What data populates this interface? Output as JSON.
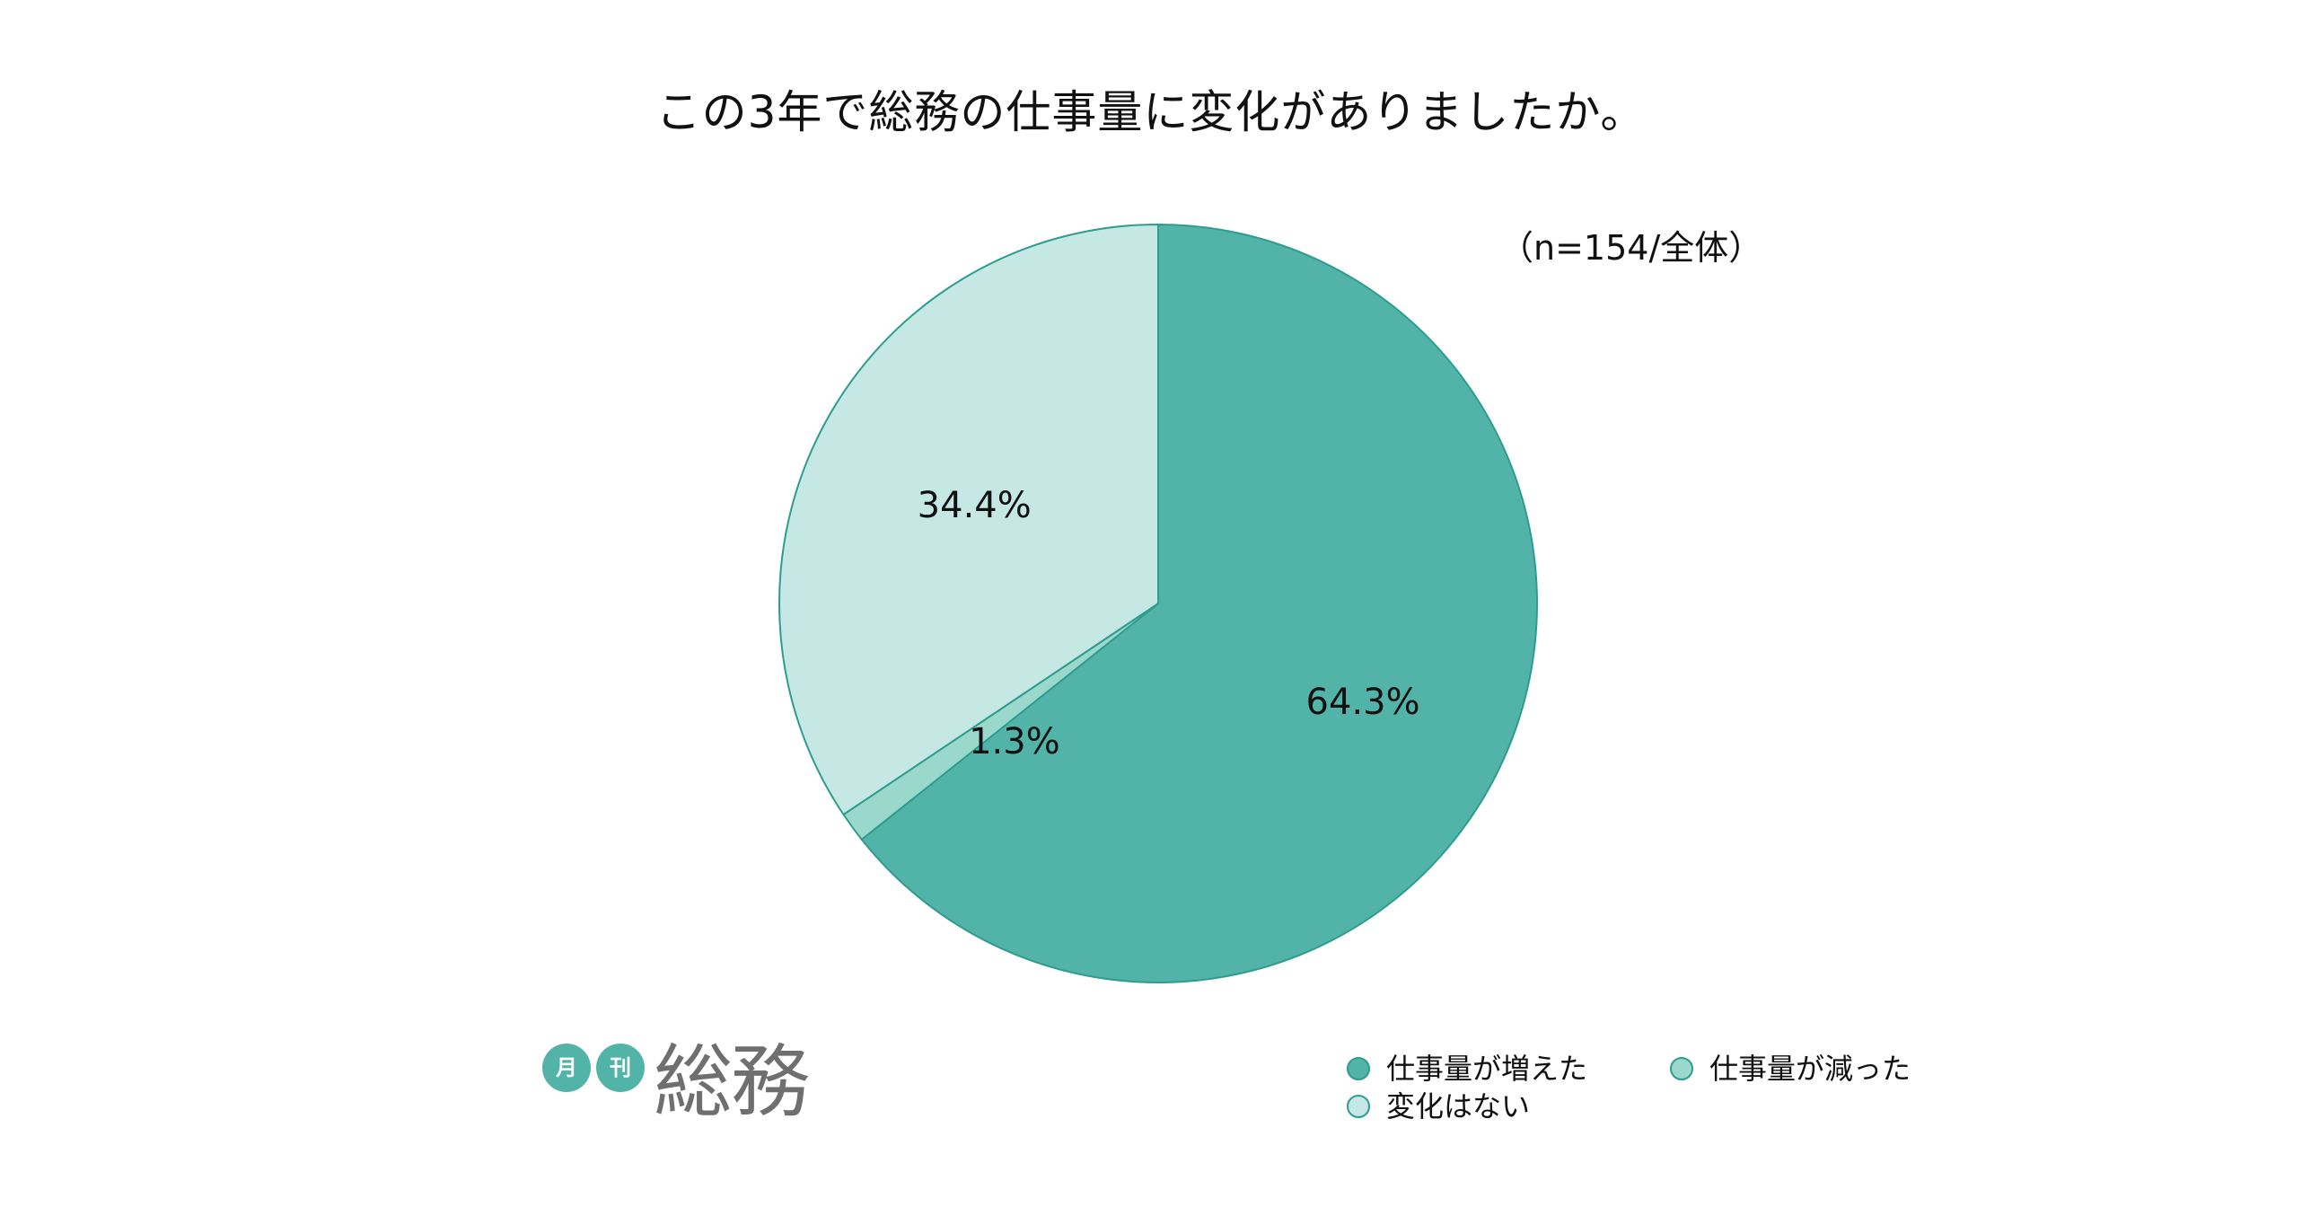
{
  "chart_data": {
    "type": "pie",
    "title": "この3年で総務の仕事量に変化がありましたか。",
    "note": "（n=154/全体）",
    "slices": [
      {
        "name": "仕事量が増えた",
        "value": 64.3,
        "label": "64.3%",
        "color": "#52b4a9"
      },
      {
        "name": "仕事量が減った",
        "value": 1.3,
        "label": "1.3%",
        "color": "#9ad8cc"
      },
      {
        "name": "変化はない",
        "value": 34.4,
        "label": "34.4%",
        "color": "#c6e8e5"
      }
    ],
    "start_angle": "12 o'clock",
    "direction": "clockwise",
    "legend_position": "bottom-right",
    "slice_edge_color": "#2e9c8e"
  },
  "logo": {
    "badge1": "月",
    "badge2": "刊",
    "main": "総務"
  }
}
